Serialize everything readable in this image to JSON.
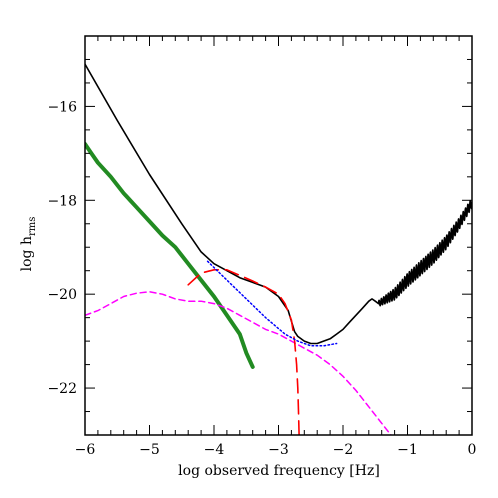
{
  "chart_data": {
    "type": "line",
    "title": "",
    "xlabel": "log observed frequency [Hz]",
    "ylabel_main": "log  h",
    "ylabel_sub": "rms",
    "xlim": [
      -6,
      0
    ],
    "ylim": [
      -23,
      -14.5
    ],
    "x_major_ticks": [
      -6,
      -5,
      -4,
      -3,
      -2,
      -1,
      0
    ],
    "x_tick_labels": [
      "−6",
      "−5",
      "−4",
      "−3",
      "−2",
      "−1",
      "0"
    ],
    "y_major_ticks": [
      -22,
      -20,
      -18,
      -16
    ],
    "y_tick_labels": [
      "−22",
      "−20",
      "−18",
      "−16"
    ],
    "grid": false,
    "legend": "none",
    "series": [
      {
        "color": "#000000",
        "style": "solid",
        "width": 1.6,
        "x": [
          -6.0,
          -5.5,
          -5.0,
          -4.5,
          -4.2,
          -4.0,
          -3.8,
          -3.6,
          -3.4,
          -3.2,
          -3.0,
          -2.85,
          -2.75,
          -2.7,
          -2.6,
          -2.5,
          -2.4,
          -2.3,
          -2.2,
          -2.1,
          -2.0,
          -1.9,
          -1.8,
          -1.7,
          -1.6,
          -1.55,
          -1.5,
          -1.45
        ],
        "y": [
          -15.1,
          -16.3,
          -17.45,
          -18.5,
          -19.1,
          -19.35,
          -19.5,
          -19.65,
          -19.75,
          -19.85,
          -20.05,
          -20.35,
          -20.8,
          -20.9,
          -21.0,
          -21.05,
          -21.05,
          -21.0,
          -20.95,
          -20.85,
          -20.75,
          -20.6,
          -20.45,
          -20.3,
          -20.15,
          -20.1,
          -20.15,
          -20.2
        ]
      },
      {
        "color": "#000000",
        "style": "oscillating",
        "width": 1.6,
        "x": [
          -1.45,
          -1.2,
          -1.0,
          -0.8,
          -0.6,
          -0.4,
          -0.2,
          0.0
        ],
        "y": [
          -20.2,
          -20.0,
          -19.7,
          -19.45,
          -19.2,
          -18.9,
          -18.5,
          -18.05
        ],
        "wiggle_amplitude": [
          0.06,
          0.12,
          0.14,
          0.15,
          0.15,
          0.14,
          0.12,
          0.1
        ],
        "wiggle_cycles": 40
      },
      {
        "color": "#228b22",
        "style": "solid",
        "width": 4,
        "x": [
          -6.0,
          -5.9,
          -5.8,
          -5.6,
          -5.4,
          -5.2,
          -5.0,
          -4.8,
          -4.6,
          -4.4,
          -4.2,
          -4.0,
          -3.8,
          -3.6,
          -3.5,
          -3.4
        ],
        "y": [
          -16.8,
          -17.0,
          -17.2,
          -17.5,
          -17.85,
          -18.15,
          -18.45,
          -18.75,
          -19.0,
          -19.35,
          -19.7,
          -20.05,
          -20.45,
          -20.85,
          -21.25,
          -21.55
        ]
      },
      {
        "color": "#ff00ff",
        "style": "dashed-short",
        "width": 1.5,
        "x": [
          -6.0,
          -5.8,
          -5.6,
          -5.4,
          -5.2,
          -5.0,
          -4.8,
          -4.6,
          -4.4,
          -4.2,
          -4.0,
          -3.8,
          -3.6,
          -3.4,
          -3.2,
          -3.0,
          -2.8,
          -2.6,
          -2.4,
          -2.2,
          -2.0,
          -1.8,
          -1.6,
          -1.4,
          -1.2
        ],
        "y": [
          -20.45,
          -20.35,
          -20.2,
          -20.05,
          -19.98,
          -19.95,
          -20.0,
          -20.1,
          -20.15,
          -20.15,
          -20.2,
          -20.3,
          -20.45,
          -20.6,
          -20.75,
          -20.85,
          -21.0,
          -21.15,
          -21.3,
          -21.5,
          -21.75,
          -22.05,
          -22.4,
          -22.75,
          -23.1
        ]
      },
      {
        "color": "#ff0000",
        "style": "dashed-long",
        "width": 1.6,
        "x": [
          -4.4,
          -4.2,
          -4.0,
          -3.8,
          -3.6,
          -3.4,
          -3.2,
          -3.0,
          -2.9,
          -2.8,
          -2.75,
          -2.72,
          -2.7,
          -2.69,
          -2.68
        ],
        "y": [
          -19.8,
          -19.55,
          -19.48,
          -19.48,
          -19.6,
          -19.72,
          -19.85,
          -20.0,
          -20.2,
          -20.55,
          -21.0,
          -21.5,
          -22.0,
          -22.5,
          -23.0
        ]
      },
      {
        "color": "#0000ff",
        "style": "dotted",
        "width": 1.5,
        "x": [
          -4.1,
          -3.8,
          -3.5,
          -3.2,
          -2.9,
          -2.7,
          -2.5,
          -2.3,
          -2.1
        ],
        "y": [
          -19.3,
          -19.7,
          -20.1,
          -20.5,
          -20.85,
          -21.0,
          -21.1,
          -21.1,
          -21.05
        ]
      }
    ]
  }
}
